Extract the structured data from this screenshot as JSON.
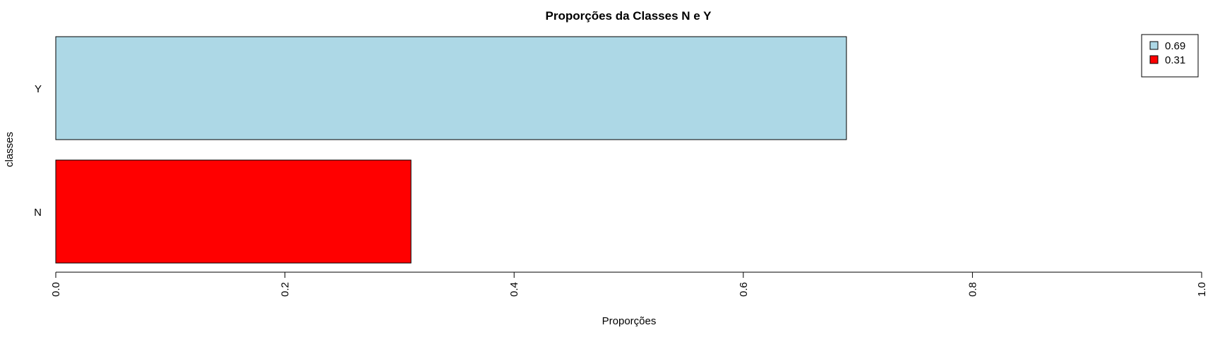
{
  "chart_data": {
    "type": "bar",
    "orientation": "horizontal",
    "title": "Proporções da Classes N e Y",
    "xlabel": "Proporções",
    "ylabel": "classes",
    "categories": [
      "N",
      "Y"
    ],
    "values": [
      0.31,
      0.69
    ],
    "colors": [
      "#ff0000",
      "#add8e6"
    ],
    "xlim": [
      0,
      1
    ],
    "xticks": [
      0,
      0.2,
      0.4,
      0.6,
      0.8,
      1
    ],
    "xtick_labels": [
      "0.0",
      "0.2",
      "0.4",
      "0.6",
      "0.8",
      "1.0"
    ],
    "grid": false,
    "legend": {
      "placement": "top-right",
      "entries": [
        {
          "label": "0.69",
          "color": "#add8e6"
        },
        {
          "label": "0.31",
          "color": "#ff0000"
        }
      ]
    }
  }
}
